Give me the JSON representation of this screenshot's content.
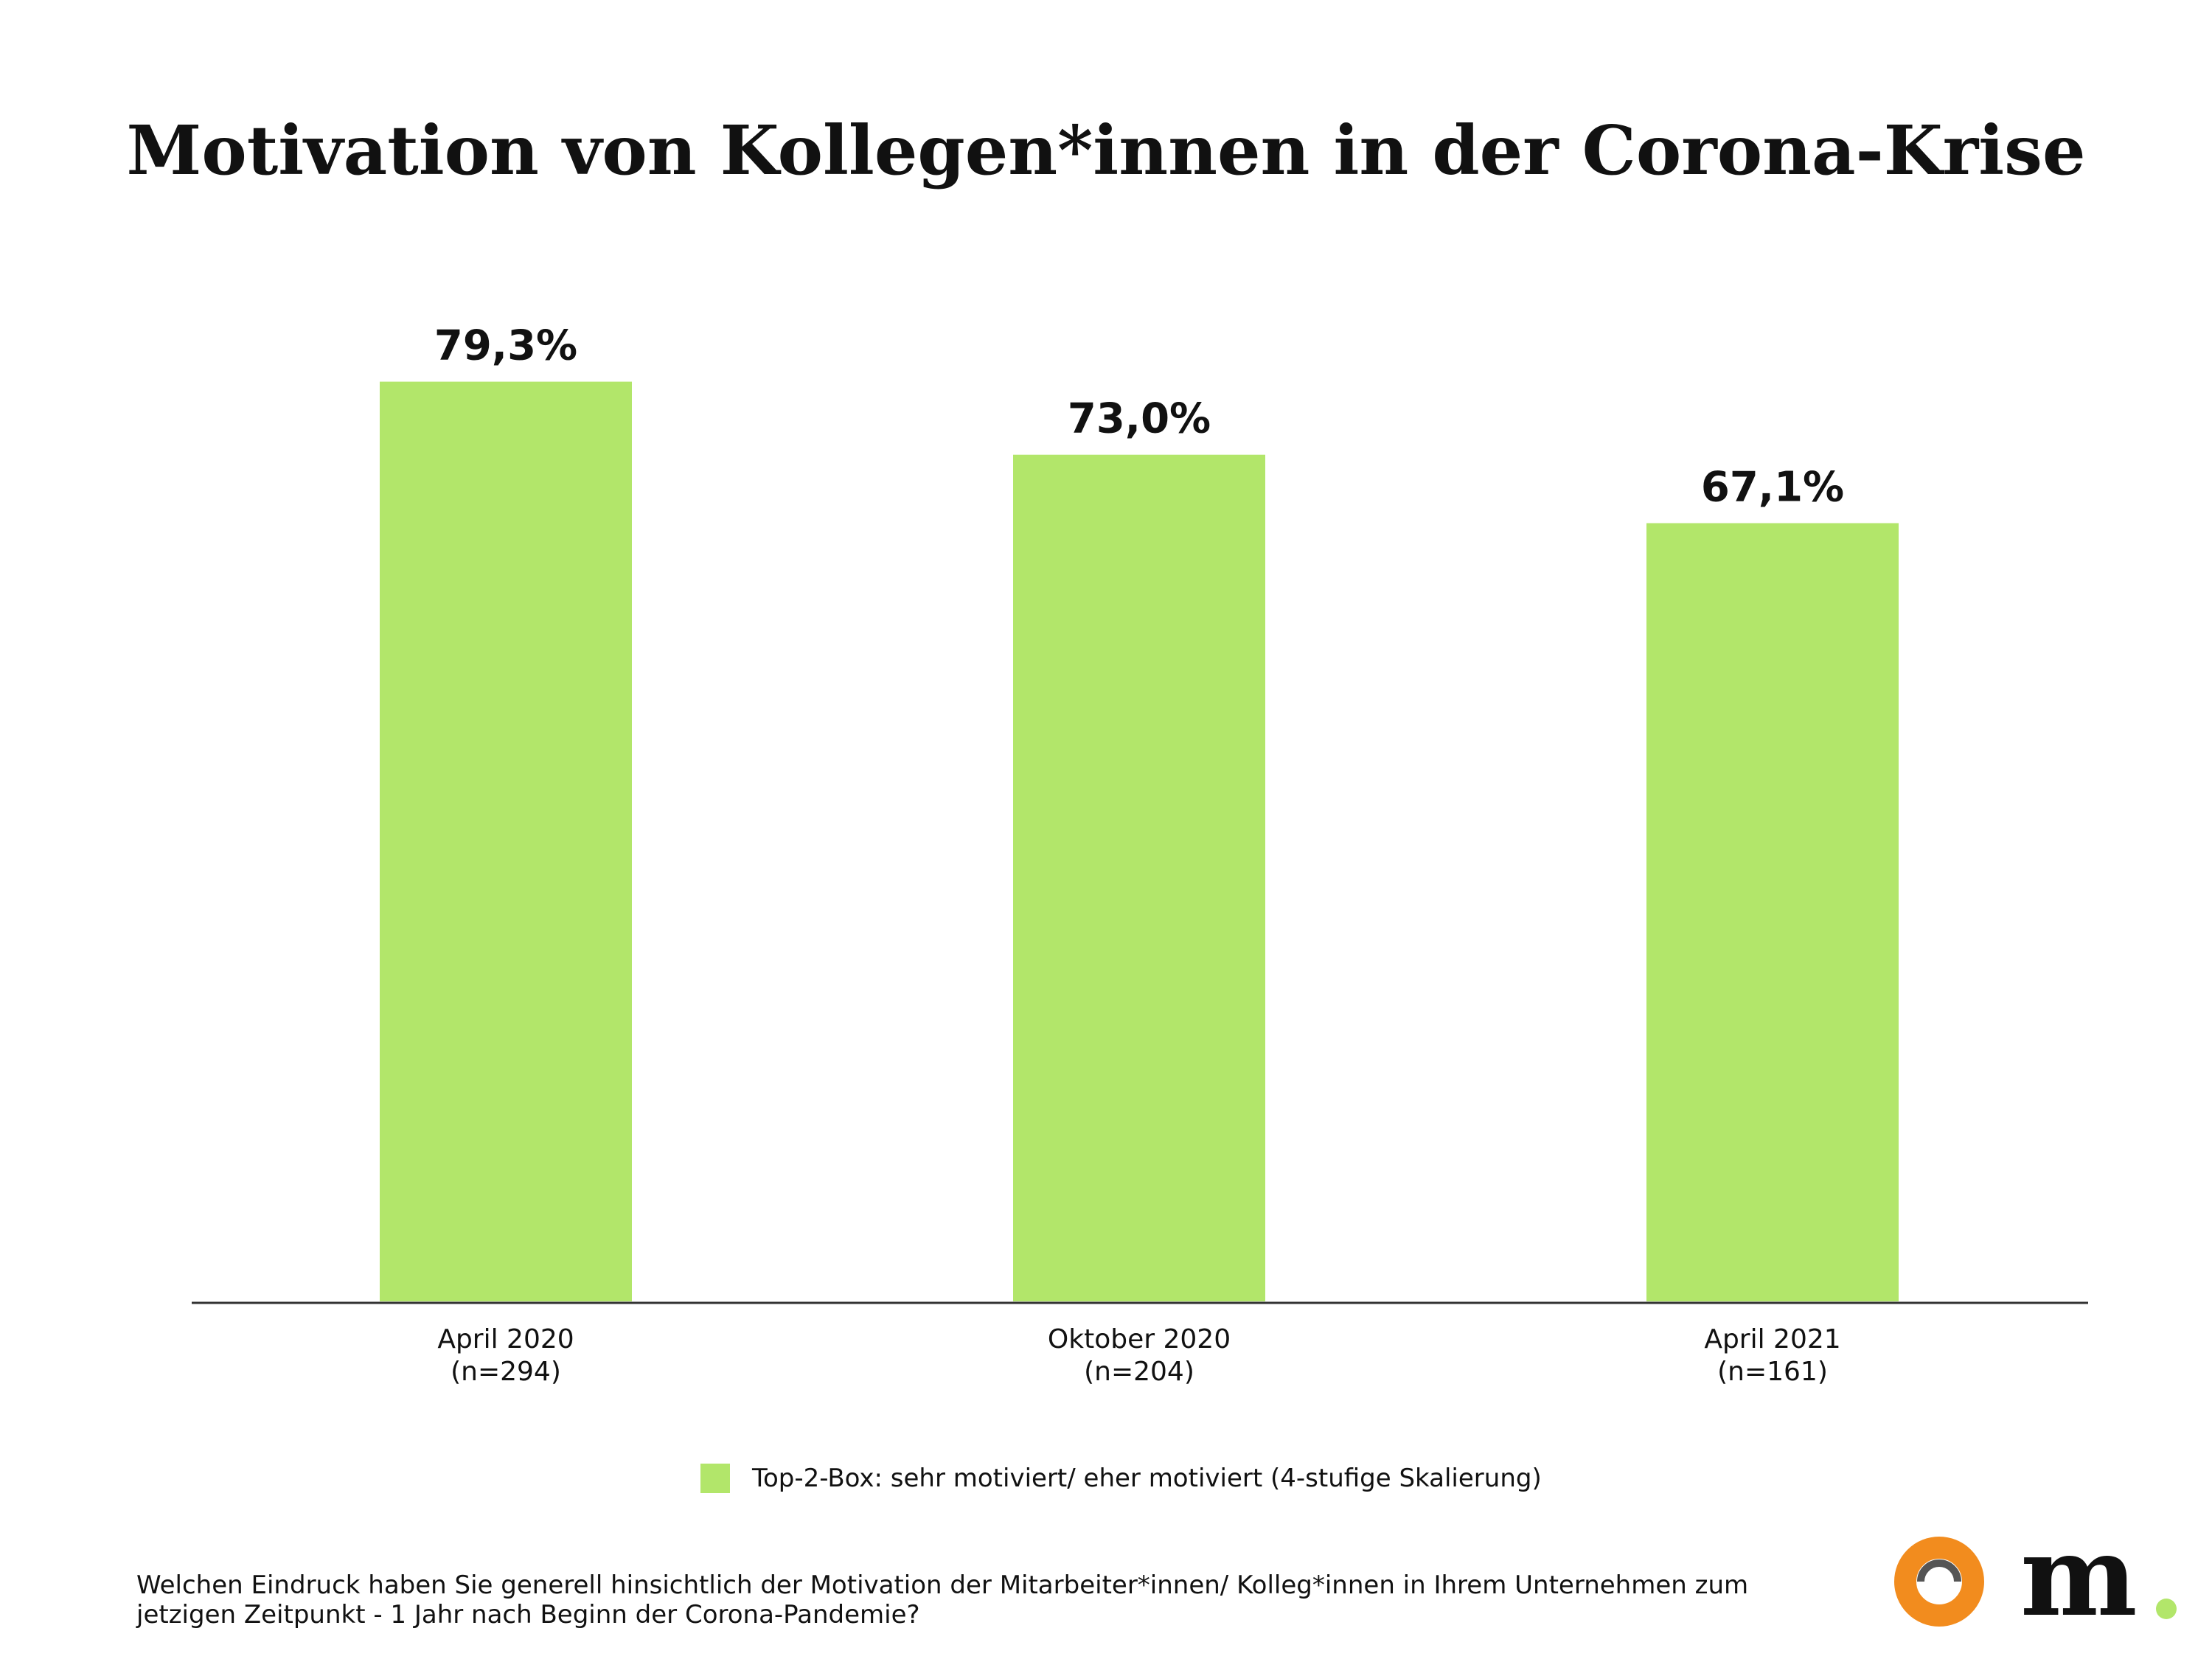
{
  "header": {
    "title": "Motivation von Kollegen*innen in der Corona-Krise"
  },
  "chart_data": {
    "type": "bar",
    "categories": [
      "April 2020",
      "Oktober 2020",
      "April 2021"
    ],
    "category_samples": [
      "(n=294)",
      "(n=204)",
      "(n=161)"
    ],
    "series": [
      {
        "name": "Top-2-Box: sehr motiviert/ eher motiviert (4-stufige Skalierung)",
        "values": [
          79.3,
          73.0,
          67.1
        ],
        "value_labels": [
          "79,3%",
          "73,0%",
          "67,1%"
        ],
        "color": "#b2e66a"
      }
    ],
    "title": "Motivation von Kollegen*innen in der Corona-Krise",
    "xlabel": "",
    "ylabel": "",
    "ylim": [
      0,
      100
    ],
    "grid": false,
    "legend_position": "bottom-center"
  },
  "legend": {
    "label": "Top-2-Box: sehr motiviert/ eher motiviert (4-stufige Skalierung)",
    "color": "#b2e66a"
  },
  "footer": {
    "question": "Welchen Eindruck haben Sie generell hinsichtlich der Motivation der Mitarbeiter*innen/ Kolleg*innen in Ihrem Unternehmen zum jetzigen Zeitpunkt - 1 Jahr nach Beginn der Corona-Pandemie?"
  },
  "logos": [
    {
      "name": "orange-ring-logo",
      "colors": [
        "#f28c1e",
        "#555555"
      ]
    },
    {
      "name": "m-logo",
      "color": "#111111",
      "dot_color": "#b2e66a"
    }
  ]
}
